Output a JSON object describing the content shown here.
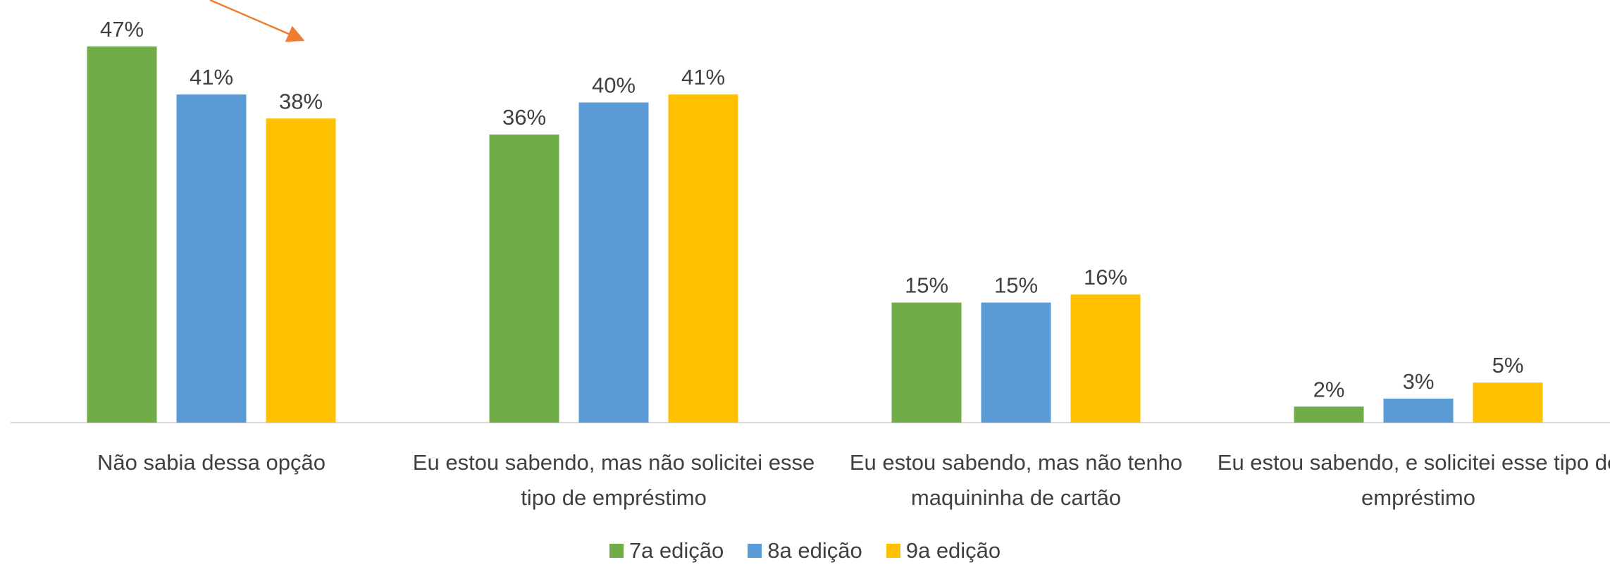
{
  "chart_data": {
    "type": "bar",
    "categories": [
      "Não sabia dessa opção",
      "Eu estou sabendo, mas não solicitei esse tipo de empréstimo",
      "Eu estou sabendo, mas não tenho maquininha de cartão",
      "Eu estou sabendo, e solicitei esse tipo de empréstimo"
    ],
    "series": [
      {
        "name": "7a edição",
        "color": "#70ad47",
        "values": [
          47,
          36,
          15,
          2
        ],
        "value_labels": [
          "47%",
          "36%",
          "15%",
          "2%"
        ]
      },
      {
        "name": "8a edição",
        "color": "#5b9bd5",
        "values": [
          41,
          40,
          15,
          3
        ],
        "value_labels": [
          "41%",
          "40%",
          "15%",
          "3%"
        ]
      },
      {
        "name": "9a edição",
        "color": "#ffc000",
        "values": [
          38,
          41,
          16,
          5
        ],
        "value_labels": [
          "38%",
          "41%",
          "16%",
          "5%"
        ]
      }
    ],
    "legend": "bottom"
  }
}
